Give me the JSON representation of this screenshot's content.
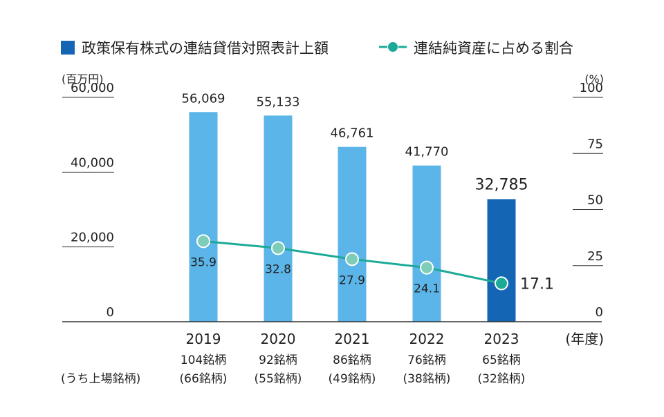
{
  "legend": {
    "bar_label": "政策保有株式の連結貸借対照表計上額",
    "line_label": "連結純資産に占める割合"
  },
  "axes": {
    "left_unit": "(百万円)",
    "right_unit": "(%)",
    "x_unit": "(年度)",
    "row_label": "(うち上場銘柄)",
    "left_ticks": [
      "0",
      "20,000",
      "40,000",
      "60,000"
    ],
    "right_ticks": [
      "0",
      "25",
      "50",
      "75",
      "100"
    ]
  },
  "colors": {
    "bar": "#5BB5E8",
    "bar_highlight": "#1565B5",
    "line": "#1BAA97",
    "marker_fill": "#7ECDB8",
    "marker_highlight_fill": "#1BAA97",
    "axis": "#333333"
  },
  "chart_data": {
    "type": "bar",
    "categories": [
      "2019",
      "2020",
      "2021",
      "2022",
      "2023"
    ],
    "sub_labels": [
      "104銘柄",
      "92銘柄",
      "86銘柄",
      "76銘柄",
      "65銘柄"
    ],
    "listed_labels": [
      "(66銘柄)",
      "(55銘柄)",
      "(49銘柄)",
      "(38銘柄)",
      "(32銘柄)"
    ],
    "series": [
      {
        "name": "政策保有株式の連結貸借対照表計上額",
        "type": "bar",
        "axis": "left",
        "values": [
          56069,
          55133,
          46761,
          41770,
          32785
        ],
        "value_labels": [
          "56,069",
          "55,133",
          "46,761",
          "41,770",
          "32,785"
        ]
      },
      {
        "name": "連結純資産に占める割合",
        "type": "line",
        "axis": "right",
        "values": [
          35.9,
          32.8,
          27.9,
          24.1,
          17.1
        ],
        "value_labels": [
          "35.9",
          "32.8",
          "27.9",
          "24.1",
          "17.1"
        ]
      }
    ],
    "ylim_left": [
      0,
      60000
    ],
    "ylim_right": [
      0,
      100
    ],
    "highlight_index": 4
  }
}
